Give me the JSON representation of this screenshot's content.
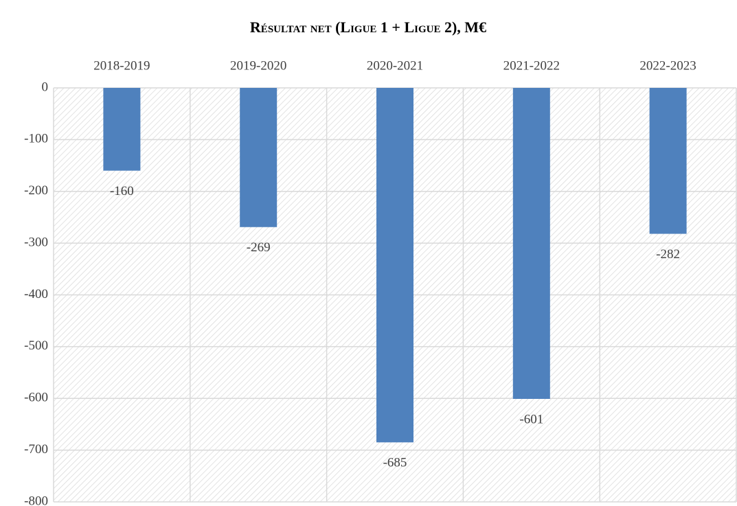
{
  "chart_data": {
    "type": "bar",
    "title": "Résultat net (Ligue 1 + Ligue 2), M€",
    "categories": [
      "2018-2019",
      "2019-2020",
      "2020-2021",
      "2021-2022",
      "2022-2023"
    ],
    "values": [
      -160,
      -269,
      -685,
      -601,
      -282
    ],
    "color": "#4f81bd",
    "ylim": [
      -800,
      0
    ],
    "yticks": [
      0,
      -100,
      -200,
      -300,
      -400,
      -500,
      -600,
      -700,
      -800
    ],
    "grid": true
  }
}
